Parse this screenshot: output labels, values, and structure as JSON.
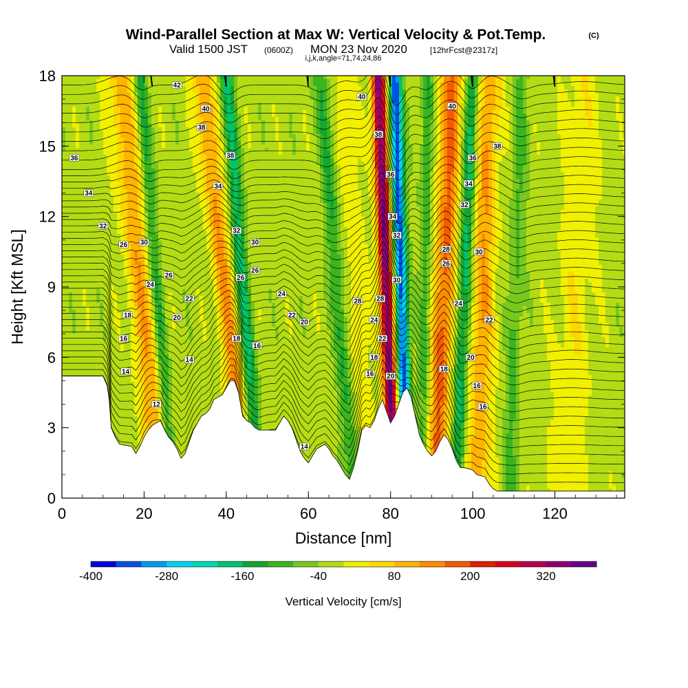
{
  "title": {
    "main": "Wind-Parallel Section at Max W: Vertical Velocity & Pot.Temp.",
    "copyright": "(C)",
    "valid_pre": "Valid 1500 JST",
    "valid_z": "(0600Z)",
    "valid_post": "MON 23 Nov 2020",
    "fcst": "[12hrFcst@2317z]",
    "params": "i,j,k,angle=71,74,24,86"
  },
  "chart_data": {
    "type": "heatmap",
    "xlabel": "Distance [nm]",
    "ylabel": "Height [Kft MSL]",
    "xlim": [
      0,
      137
    ],
    "ylim": [
      0,
      18
    ],
    "x_ticks": [
      0,
      20,
      40,
      60,
      80,
      100,
      120
    ],
    "x_tick_labels": [
      "0",
      "20",
      "40",
      "60",
      "80",
      "100",
      "120"
    ],
    "y_ticks": [
      0,
      3,
      6,
      9,
      12,
      15,
      18
    ],
    "y_tick_labels": [
      "0",
      "3",
      "6",
      "9",
      "12",
      "15",
      "18"
    ],
    "colorbar": {
      "label": "Vertical Velocity [cm/s]",
      "min": -400,
      "max": 400,
      "step": 40,
      "tick_values": [
        -400,
        -280,
        -160,
        -40,
        80,
        200,
        320
      ],
      "tick_labels": [
        "-400",
        "-280",
        "-160",
        "-40",
        "80",
        "200",
        "320"
      ],
      "colors": [
        "#0000dc",
        "#0050e6",
        "#009bf0",
        "#00d2f5",
        "#00d7b4",
        "#00c36e",
        "#14a532",
        "#3cb41e",
        "#78c81e",
        "#b4dc14",
        "#f0f000",
        "#ffd700",
        "#ffb400",
        "#ff8c00",
        "#f55a00",
        "#e11e00",
        "#d7001e",
        "#b4004b",
        "#8c0073",
        "#64008c"
      ]
    },
    "terrain_kft": [
      [
        0,
        5.2
      ],
      [
        1,
        5.2
      ],
      [
        10,
        5.2
      ],
      [
        11,
        4.8
      ],
      [
        11.5,
        4.2
      ],
      [
        12,
        3.0
      ],
      [
        13,
        2.6
      ],
      [
        14,
        2.3
      ],
      [
        17,
        2.2
      ],
      [
        18,
        1.9
      ],
      [
        19,
        2.2
      ],
      [
        20,
        2.6
      ],
      [
        21,
        2.9
      ],
      [
        22,
        3.1
      ],
      [
        23,
        3.2
      ],
      [
        24,
        3.3
      ],
      [
        25,
        2.9
      ],
      [
        26,
        2.6
      ],
      [
        27,
        2.4
      ],
      [
        28,
        2.1
      ],
      [
        29,
        1.7
      ],
      [
        30,
        1.9
      ],
      [
        31,
        2.4
      ],
      [
        32,
        2.9
      ],
      [
        33,
        3.2
      ],
      [
        34,
        3.5
      ],
      [
        35,
        3.6
      ],
      [
        36,
        3.8
      ],
      [
        37,
        4.2
      ],
      [
        38,
        4.3
      ],
      [
        39,
        4.4
      ],
      [
        40,
        4.7
      ],
      [
        41,
        5.0
      ],
      [
        42,
        5.0
      ],
      [
        43,
        4.5
      ],
      [
        44,
        3.5
      ],
      [
        45,
        3.3
      ],
      [
        46,
        3.2
      ],
      [
        47,
        3.0
      ],
      [
        48,
        2.9
      ],
      [
        52,
        2.9
      ],
      [
        53,
        3.2
      ],
      [
        54,
        3.5
      ],
      [
        55,
        3.3
      ],
      [
        56,
        3.0
      ],
      [
        57,
        2.5
      ],
      [
        58,
        2.0
      ],
      [
        59,
        1.7
      ],
      [
        60,
        1.5
      ],
      [
        61,
        1.8
      ],
      [
        62,
        2.1
      ],
      [
        63,
        2.2
      ],
      [
        64,
        2.3
      ],
      [
        65,
        2.1
      ],
      [
        66,
        1.8
      ],
      [
        67,
        1.6
      ],
      [
        68,
        1.3
      ],
      [
        69,
        1.0
      ],
      [
        70,
        0.8
      ],
      [
        71,
        1.3
      ],
      [
        72,
        2.0
      ],
      [
        73,
        2.9
      ],
      [
        74,
        3.1
      ],
      [
        75,
        3.0
      ],
      [
        76,
        3.3
      ],
      [
        77,
        3.8
      ],
      [
        78,
        4.2
      ],
      [
        79,
        3.7
      ],
      [
        80,
        3.2
      ],
      [
        81,
        3.5
      ],
      [
        82,
        4.0
      ],
      [
        83,
        4.5
      ],
      [
        84,
        4.7
      ],
      [
        85,
        4.3
      ],
      [
        86,
        3.5
      ],
      [
        87,
        2.7
      ],
      [
        88,
        2.3
      ],
      [
        89,
        2.0
      ],
      [
        90,
        1.8
      ],
      [
        91,
        2.0
      ],
      [
        92,
        2.4
      ],
      [
        93,
        2.7
      ],
      [
        94,
        2.5
      ],
      [
        95,
        2.1
      ],
      [
        96,
        1.6
      ],
      [
        97,
        1.3
      ],
      [
        98,
        1.3
      ],
      [
        100,
        1.2
      ],
      [
        101,
        1.0
      ],
      [
        103,
        0.9
      ],
      [
        104,
        0.6
      ],
      [
        105,
        0.4
      ],
      [
        106,
        0.3
      ],
      [
        137,
        0.3
      ]
    ],
    "updraft_bands": [
      {
        "x_top": 14,
        "x_bot": 24,
        "w": 3.0,
        "amp": 130
      },
      {
        "x_top": 34,
        "x_bot": 45,
        "w": 2.4,
        "amp": 150
      },
      {
        "x_top": 69,
        "x_bot": 75,
        "w": 2.2,
        "amp": 60
      },
      {
        "x_top": 77,
        "x_bot": 81,
        "w": 1.7,
        "amp": 390
      },
      {
        "x_top": 95,
        "x_bot": 91,
        "w": 2.7,
        "amp": 190
      },
      {
        "x_top": 104,
        "x_bot": 101,
        "w": 2.8,
        "amp": 140
      },
      {
        "x_top": 127,
        "x_bot": 123,
        "w": 4.5,
        "amp": 50
      }
    ],
    "downdraft_bands": [
      {
        "x_top": 19,
        "x_bot": 27,
        "w": 1.5,
        "amp": -110
      },
      {
        "x_top": 40,
        "x_bot": 48,
        "w": 1.7,
        "amp": -150
      },
      {
        "x_top": 63,
        "x_bot": 71,
        "w": 1.8,
        "amp": -100
      },
      {
        "x_top": 81,
        "x_bot": 84,
        "w": 1.6,
        "amp": -330
      },
      {
        "x_top": 89,
        "x_bot": 88,
        "w": 1.5,
        "amp": -90
      },
      {
        "x_top": 100,
        "x_bot": 96,
        "w": 1.7,
        "amp": -160
      },
      {
        "x_top": 112,
        "x_bot": 109,
        "w": 1.8,
        "amp": -70
      }
    ],
    "theta_contour_labels": [
      {
        "value": "42",
        "x": 28,
        "y": 17.6
      },
      {
        "value": "40",
        "x": 35,
        "y": 16.6
      },
      {
        "value": "38",
        "x": 34,
        "y": 15.8
      },
      {
        "value": "36",
        "x": 3,
        "y": 14.5
      },
      {
        "value": "34",
        "x": 6.5,
        "y": 13.0
      },
      {
        "value": "34",
        "x": 38,
        "y": 13.3
      },
      {
        "value": "32",
        "x": 10,
        "y": 11.6
      },
      {
        "value": "38",
        "x": 41,
        "y": 14.6
      },
      {
        "value": "26",
        "x": 15,
        "y": 10.8
      },
      {
        "value": "30",
        "x": 20,
        "y": 10.9
      },
      {
        "value": "24",
        "x": 21.5,
        "y": 9.1
      },
      {
        "value": "26",
        "x": 26,
        "y": 9.5
      },
      {
        "value": "22",
        "x": 31,
        "y": 8.5
      },
      {
        "value": "20",
        "x": 28,
        "y": 7.7
      },
      {
        "value": "18",
        "x": 16,
        "y": 7.8
      },
      {
        "value": "16",
        "x": 15,
        "y": 6.8
      },
      {
        "value": "14",
        "x": 15.5,
        "y": 5.4
      },
      {
        "value": "12",
        "x": 23,
        "y": 4.0
      },
      {
        "value": "14",
        "x": 31,
        "y": 5.9
      },
      {
        "value": "32",
        "x": 42.5,
        "y": 11.4
      },
      {
        "value": "30",
        "x": 47,
        "y": 10.9
      },
      {
        "value": "26",
        "x": 43.5,
        "y": 9.4
      },
      {
        "value": "26",
        "x": 47,
        "y": 9.7
      },
      {
        "value": "24",
        "x": 53.5,
        "y": 8.7
      },
      {
        "value": "22",
        "x": 56,
        "y": 7.8
      },
      {
        "value": "20",
        "x": 59,
        "y": 7.5
      },
      {
        "value": "18",
        "x": 42.5,
        "y": 6.8
      },
      {
        "value": "16",
        "x": 47.5,
        "y": 6.5
      },
      {
        "value": "14",
        "x": 59,
        "y": 2.2
      },
      {
        "value": "40",
        "x": 73,
        "y": 17.1
      },
      {
        "value": "38",
        "x": 77,
        "y": 15.5
      },
      {
        "value": "36",
        "x": 80,
        "y": 13.8
      },
      {
        "value": "34",
        "x": 80.5,
        "y": 12.0
      },
      {
        "value": "32",
        "x": 81.5,
        "y": 11.2
      },
      {
        "value": "30",
        "x": 81.5,
        "y": 9.3
      },
      {
        "value": "28",
        "x": 72,
        "y": 8.4
      },
      {
        "value": "28",
        "x": 77.5,
        "y": 8.5
      },
      {
        "value": "24",
        "x": 76,
        "y": 7.6
      },
      {
        "value": "22",
        "x": 78,
        "y": 6.8
      },
      {
        "value": "18",
        "x": 76,
        "y": 6.0
      },
      {
        "value": "16",
        "x": 75,
        "y": 5.3
      },
      {
        "value": "20",
        "x": 80,
        "y": 5.2
      },
      {
        "value": "40",
        "x": 95,
        "y": 16.7
      },
      {
        "value": "38",
        "x": 106,
        "y": 15.0
      },
      {
        "value": "36",
        "x": 100,
        "y": 14.5
      },
      {
        "value": "34",
        "x": 99,
        "y": 13.4
      },
      {
        "value": "32",
        "x": 98,
        "y": 12.5
      },
      {
        "value": "28",
        "x": 93.5,
        "y": 10.6
      },
      {
        "value": "30",
        "x": 101.5,
        "y": 10.5
      },
      {
        "value": "26",
        "x": 93.5,
        "y": 10.0
      },
      {
        "value": "24",
        "x": 96.5,
        "y": 8.3
      },
      {
        "value": "22",
        "x": 104,
        "y": 7.6
      },
      {
        "value": "20",
        "x": 99.5,
        "y": 6.0
      },
      {
        "value": "18",
        "x": 93,
        "y": 5.5
      },
      {
        "value": "16",
        "x": 101,
        "y": 4.8
      },
      {
        "value": "16",
        "x": 102.5,
        "y": 3.9
      }
    ],
    "grid": false,
    "legend": "bottom colorbar"
  }
}
